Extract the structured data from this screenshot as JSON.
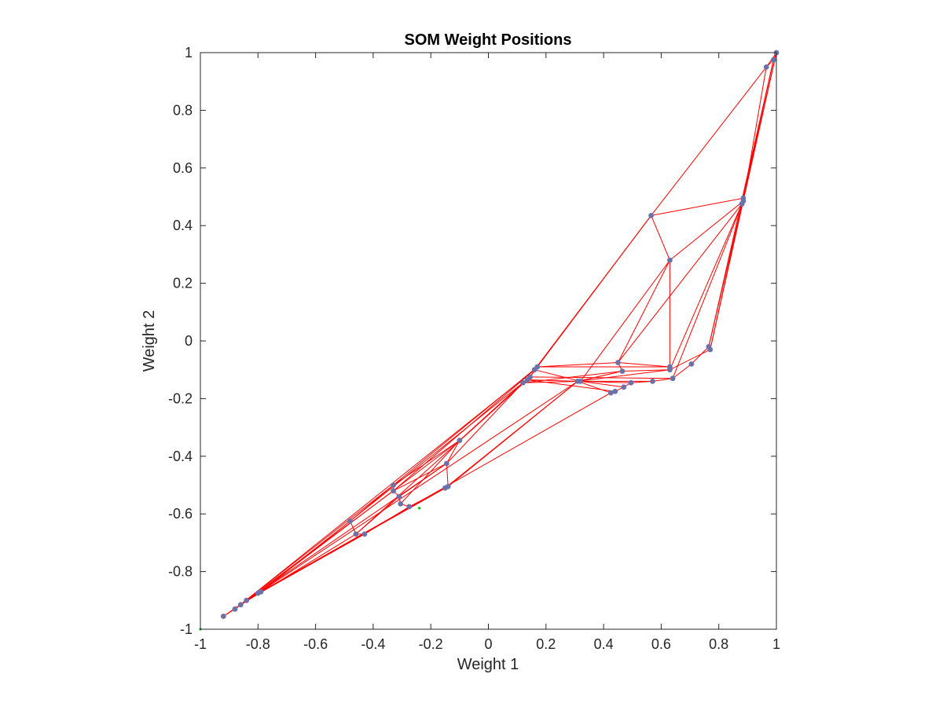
{
  "chart_data": {
    "type": "scatter",
    "title": "SOM Weight Positions",
    "xlabel": "Weight 1",
    "ylabel": "Weight 2",
    "xlim": [
      -1,
      1
    ],
    "ylim": [
      -1,
      1
    ],
    "xticks": [
      "-1",
      "-0.8",
      "-0.6",
      "-0.4",
      "-0.2",
      "0",
      "0.2",
      "0.4",
      "0.6",
      "0.8",
      "1"
    ],
    "yticks": [
      "-1",
      "-0.8",
      "-0.6",
      "-0.4",
      "-0.2",
      "0",
      "0.2",
      "0.4",
      "0.6",
      "0.8",
      "1"
    ],
    "grid": false,
    "box": true,
    "colors": {
      "neurons": "#6b72a8",
      "links": "#ff0000",
      "inputs": "#00cc00",
      "axes": "#262626"
    },
    "neurons": [
      [
        1.0,
        1.0
      ],
      [
        0.99,
        0.975
      ],
      [
        0.965,
        0.95
      ],
      [
        0.885,
        0.495
      ],
      [
        0.885,
        0.485
      ],
      [
        0.88,
        0.475
      ],
      [
        0.565,
        0.435
      ],
      [
        0.63,
        0.28
      ],
      [
        0.765,
        -0.02
      ],
      [
        0.77,
        -0.03
      ],
      [
        0.705,
        -0.08
      ],
      [
        0.63,
        -0.09
      ],
      [
        0.63,
        -0.1
      ],
      [
        0.64,
        -0.13
      ],
      [
        0.57,
        -0.14
      ],
      [
        0.45,
        -0.075
      ],
      [
        0.465,
        -0.105
      ],
      [
        0.495,
        -0.145
      ],
      [
        0.47,
        -0.16
      ],
      [
        0.44,
        -0.175
      ],
      [
        0.425,
        -0.18
      ],
      [
        0.31,
        -0.14
      ],
      [
        0.32,
        -0.14
      ],
      [
        0.17,
        -0.09
      ],
      [
        0.16,
        -0.1
      ],
      [
        0.145,
        -0.125
      ],
      [
        0.135,
        -0.135
      ],
      [
        0.12,
        -0.145
      ],
      [
        -0.1,
        -0.345
      ],
      [
        -0.145,
        -0.425
      ],
      [
        -0.14,
        -0.505
      ],
      [
        -0.15,
        -0.51
      ],
      [
        -0.33,
        -0.5
      ],
      [
        -0.33,
        -0.52
      ],
      [
        -0.31,
        -0.54
      ],
      [
        -0.305,
        -0.565
      ],
      [
        -0.275,
        -0.575
      ],
      [
        -0.48,
        -0.625
      ],
      [
        -0.46,
        -0.67
      ],
      [
        -0.43,
        -0.67
      ],
      [
        -0.79,
        -0.87
      ],
      [
        -0.8,
        -0.875
      ],
      [
        -0.84,
        -0.9
      ],
      [
        -0.86,
        -0.915
      ],
      [
        -0.88,
        -0.93
      ],
      [
        -0.92,
        -0.955
      ]
    ],
    "links": [
      [
        0,
        1
      ],
      [
        1,
        2
      ],
      [
        0,
        2
      ],
      [
        0,
        3
      ],
      [
        1,
        5
      ],
      [
        2,
        4
      ],
      [
        2,
        6
      ],
      [
        1,
        8
      ],
      [
        0,
        9
      ],
      [
        3,
        6
      ],
      [
        3,
        8
      ],
      [
        4,
        7
      ],
      [
        5,
        15
      ],
      [
        5,
        12
      ],
      [
        4,
        13
      ],
      [
        3,
        9
      ],
      [
        6,
        7
      ],
      [
        6,
        23
      ],
      [
        6,
        24
      ],
      [
        7,
        22
      ],
      [
        7,
        11
      ],
      [
        7,
        15
      ],
      [
        8,
        10
      ],
      [
        9,
        12
      ],
      [
        10,
        13
      ],
      [
        11,
        23
      ],
      [
        11,
        12
      ],
      [
        12,
        21
      ],
      [
        13,
        14
      ],
      [
        14,
        22
      ],
      [
        13,
        25
      ],
      [
        15,
        16
      ],
      [
        15,
        23
      ],
      [
        15,
        11
      ],
      [
        16,
        12
      ],
      [
        16,
        21
      ],
      [
        17,
        18
      ],
      [
        17,
        14
      ],
      [
        18,
        19
      ],
      [
        19,
        20
      ],
      [
        20,
        21
      ],
      [
        19,
        26
      ],
      [
        18,
        22
      ],
      [
        17,
        21
      ],
      [
        16,
        27
      ],
      [
        21,
        22
      ],
      [
        21,
        26
      ],
      [
        22,
        24
      ],
      [
        22,
        27
      ],
      [
        23,
        24
      ],
      [
        23,
        25
      ],
      [
        24,
        25
      ],
      [
        25,
        26
      ],
      [
        26,
        27
      ],
      [
        23,
        32
      ],
      [
        24,
        33
      ],
      [
        25,
        37
      ],
      [
        26,
        38
      ],
      [
        27,
        28
      ],
      [
        27,
        29
      ],
      [
        21,
        30
      ],
      [
        21,
        31
      ],
      [
        20,
        40
      ],
      [
        28,
        29
      ],
      [
        28,
        32
      ],
      [
        28,
        35
      ],
      [
        29,
        30
      ],
      [
        29,
        34
      ],
      [
        29,
        33
      ],
      [
        30,
        31
      ],
      [
        31,
        36
      ],
      [
        30,
        40
      ],
      [
        31,
        41
      ],
      [
        32,
        33
      ],
      [
        32,
        37
      ],
      [
        33,
        34
      ],
      [
        34,
        35
      ],
      [
        35,
        36
      ],
      [
        36,
        39
      ],
      [
        34,
        38
      ],
      [
        33,
        42
      ],
      [
        37,
        38
      ],
      [
        37,
        40
      ],
      [
        37,
        41
      ],
      [
        38,
        39
      ],
      [
        39,
        42
      ],
      [
        38,
        43
      ],
      [
        32,
        44
      ],
      [
        28,
        41
      ],
      [
        40,
        41
      ],
      [
        41,
        42
      ],
      [
        42,
        43
      ],
      [
        43,
        44
      ],
      [
        44,
        45
      ],
      [
        40,
        45
      ],
      [
        29,
        45
      ],
      [
        24,
        44
      ],
      [
        21,
        43
      ]
    ],
    "inputs": [
      [
        -1.0,
        -1.0
      ],
      [
        -0.24,
        -0.58
      ]
    ]
  }
}
